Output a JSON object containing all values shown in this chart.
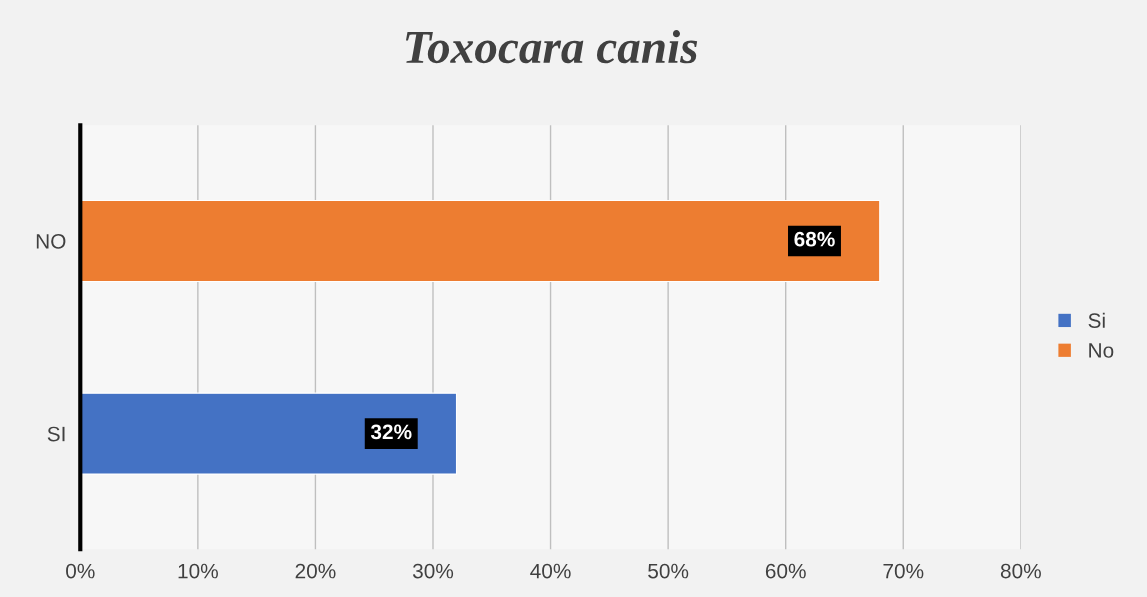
{
  "chart_data": {
    "type": "bar",
    "orientation": "horizontal",
    "title": "Toxocara canis",
    "categories": [
      "NO",
      "SI"
    ],
    "series": [
      {
        "name": "Si",
        "color": "#4472c4",
        "values": [
          null,
          32
        ],
        "value_labels": [
          null,
          "32%"
        ]
      },
      {
        "name": "No",
        "color": "#ed7d31",
        "values": [
          68,
          null
        ],
        "value_labels": [
          "68%",
          null
        ]
      }
    ],
    "xlim": [
      0,
      80
    ],
    "xticks": [
      {
        "value": 0,
        "label": "0%"
      },
      {
        "value": 10,
        "label": "10%"
      },
      {
        "value": 20,
        "label": "20%"
      },
      {
        "value": 30,
        "label": "30%"
      },
      {
        "value": 40,
        "label": "40%"
      },
      {
        "value": 50,
        "label": "50%"
      },
      {
        "value": 60,
        "label": "60%"
      },
      {
        "value": 70,
        "label": "70%"
      },
      {
        "value": 80,
        "label": "80%"
      }
    ],
    "grid": "x",
    "legend": "right"
  }
}
